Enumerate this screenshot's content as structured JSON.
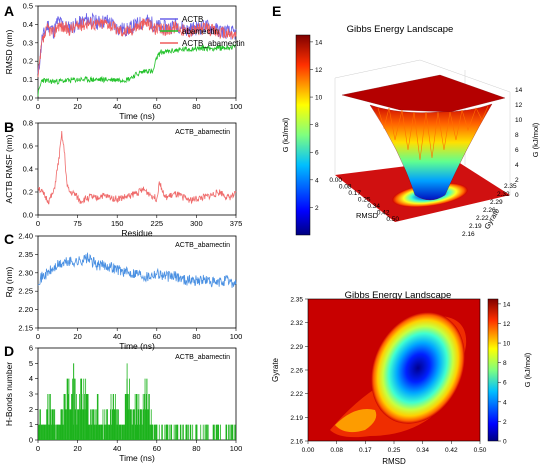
{
  "panels": {
    "A": {
      "letter": "A",
      "ylabel": "RMSD (nm)",
      "xlabel": "Time (ns)",
      "legend": [
        "ACTB",
        "abamectin",
        "ACTB_abamectin"
      ],
      "xticks": [
        "0",
        "20",
        "40",
        "60",
        "80",
        "100"
      ],
      "yticks": [
        "0.0",
        "0.1",
        "0.2",
        "0.3",
        "0.4",
        "0.5"
      ]
    },
    "B": {
      "letter": "B",
      "ylabel": "ACTB RMSF (nm)",
      "xlabel": "Residue",
      "tag": "ACTB_abamectin",
      "xticks": [
        "0",
        "75",
        "150",
        "225",
        "300",
        "375"
      ],
      "yticks": [
        "0.0",
        "0.2",
        "0.4",
        "0.6",
        "0.8"
      ]
    },
    "C": {
      "letter": "C",
      "ylabel": "Rg (nm)",
      "xlabel": "Time (ns)",
      "tag": "ACTB_abamectin",
      "xticks": [
        "0",
        "20",
        "40",
        "60",
        "80",
        "100"
      ],
      "yticks": [
        "2.15",
        "2.20",
        "2.25",
        "2.30",
        "2.35",
        "2.40"
      ]
    },
    "D": {
      "letter": "D",
      "ylabel": "H-Bonds number",
      "xlabel": "Time (ns)",
      "tag": "ACTB_abamectin",
      "xticks": [
        "0",
        "20",
        "40",
        "60",
        "80",
        "100"
      ],
      "yticks": [
        "0",
        "1",
        "2",
        "3",
        "4",
        "5",
        "6"
      ]
    },
    "E": {
      "letter": "E",
      "title3d": "Gibbs Energy Landscape",
      "title2d": "Gibbs Energy Landscape",
      "zlabel": "G (kJ/mol)",
      "cbar_label": "G (kJ/mol)",
      "cbar_label2": "G (kJ/mol)",
      "rmsd_label": "RMSD",
      "gyrate_label": "Gyrate",
      "cbar_ticks": [
        "2",
        "4",
        "6",
        "8",
        "10",
        "12",
        "14"
      ],
      "cbar2_ticks": [
        "0",
        "2",
        "4",
        "6",
        "8",
        "10",
        "12",
        "14"
      ],
      "z_ticks": [
        "0",
        "2",
        "4",
        "6",
        "8",
        "10",
        "12",
        "14"
      ],
      "rmsd3d_ticks": [
        "0.00",
        "0.08",
        "0.17",
        "0.25",
        "0.34",
        "0.42",
        "0.50"
      ],
      "gyr3d_ticks": [
        "2.16",
        "2.19",
        "2.22",
        "2.26",
        "2.29",
        "2.32",
        "2.35"
      ],
      "rmsd2d_ticks": [
        "0.00",
        "0.08",
        "0.17",
        "0.25",
        "0.34",
        "0.42",
        "0.50"
      ],
      "gyr2d_ticks": [
        "2.16",
        "2.19",
        "2.22",
        "2.26",
        "2.29",
        "2.32",
        "2.35"
      ]
    }
  },
  "colors": {
    "ACTB": "#6b63e8",
    "abamectin": "#22c22a",
    "ACTB_abamectin": "#ef5b5b",
    "rmsf": "#ef6b6b",
    "rg": "#4a90e2",
    "hbond": "#1db31d"
  },
  "chart_data": [
    {
      "type": "line",
      "panel": "A",
      "xlim": [
        0,
        100
      ],
      "ylim": [
        0,
        0.5
      ],
      "series": [
        {
          "name": "ACTB",
          "x": [
            0,
            2,
            5,
            8,
            10,
            15,
            20,
            25,
            30,
            35,
            40,
            45,
            50,
            55,
            60,
            65,
            70,
            75,
            80,
            85,
            90,
            95,
            100
          ],
          "values": [
            0.12,
            0.32,
            0.4,
            0.36,
            0.42,
            0.38,
            0.4,
            0.43,
            0.41,
            0.42,
            0.38,
            0.37,
            0.4,
            0.42,
            0.39,
            0.38,
            0.4,
            0.37,
            0.38,
            0.39,
            0.37,
            0.36,
            0.35
          ]
        },
        {
          "name": "abamectin",
          "x": [
            0,
            2,
            5,
            10,
            20,
            30,
            40,
            45,
            50,
            55,
            58,
            60,
            62,
            65,
            70,
            80,
            90,
            100
          ],
          "values": [
            0.02,
            0.1,
            0.09,
            0.09,
            0.1,
            0.1,
            0.1,
            0.1,
            0.13,
            0.15,
            0.14,
            0.22,
            0.25,
            0.25,
            0.26,
            0.27,
            0.27,
            0.28
          ]
        },
        {
          "name": "ACTB_abamectin",
          "x": [
            0,
            2,
            5,
            8,
            10,
            15,
            20,
            25,
            30,
            35,
            40,
            45,
            50,
            55,
            60,
            65,
            70,
            75,
            80,
            85,
            90,
            95,
            100
          ],
          "values": [
            0.1,
            0.3,
            0.38,
            0.35,
            0.4,
            0.37,
            0.39,
            0.41,
            0.4,
            0.41,
            0.37,
            0.36,
            0.39,
            0.41,
            0.37,
            0.37,
            0.39,
            0.36,
            0.37,
            0.38,
            0.36,
            0.35,
            0.34
          ]
        }
      ]
    },
    {
      "type": "line",
      "panel": "B",
      "xlim": [
        0,
        375
      ],
      "ylim": [
        0,
        0.8
      ],
      "series": [
        {
          "x": [
            0,
            10,
            20,
            30,
            40,
            45,
            50,
            55,
            60,
            70,
            80,
            100,
            110,
            120,
            150,
            170,
            200,
            225,
            230,
            240,
            260,
            290,
            320,
            345,
            360,
            375
          ],
          "values": [
            0.25,
            0.18,
            0.12,
            0.2,
            0.5,
            0.7,
            0.55,
            0.25,
            0.2,
            0.18,
            0.12,
            0.16,
            0.14,
            0.17,
            0.14,
            0.16,
            0.22,
            0.14,
            0.3,
            0.15,
            0.18,
            0.13,
            0.16,
            0.2,
            0.15,
            0.18
          ]
        }
      ]
    },
    {
      "type": "line",
      "panel": "C",
      "xlim": [
        0,
        100
      ],
      "ylim": [
        2.15,
        2.4
      ],
      "series": [
        {
          "x": [
            0,
            5,
            10,
            15,
            20,
            25,
            30,
            35,
            40,
            45,
            50,
            55,
            60,
            65,
            70,
            75,
            80,
            85,
            90,
            95,
            100
          ],
          "values": [
            2.28,
            2.3,
            2.32,
            2.33,
            2.33,
            2.34,
            2.32,
            2.32,
            2.31,
            2.3,
            2.3,
            2.29,
            2.3,
            2.29,
            2.29,
            2.28,
            2.28,
            2.28,
            2.27,
            2.28,
            2.27
          ]
        }
      ]
    },
    {
      "type": "bar",
      "panel": "D",
      "xlim": [
        0,
        100
      ],
      "ylim": [
        0,
        6
      ],
      "series": [
        {
          "x": [
            1,
            3,
            5,
            8,
            10,
            12,
            15,
            17,
            18,
            20,
            22,
            25,
            28,
            30,
            32,
            35,
            38,
            40,
            42,
            45,
            48,
            50,
            52,
            55,
            58,
            60,
            65,
            70,
            75,
            80,
            85,
            90,
            95,
            98
          ],
          "values": [
            2,
            1,
            3,
            2,
            1,
            2,
            4,
            3,
            5,
            2,
            4,
            3,
            2,
            3,
            1,
            2,
            3,
            2,
            1,
            4,
            2,
            3,
            2,
            4,
            1,
            1,
            1,
            1,
            1,
            1,
            1,
            1,
            1,
            1
          ]
        }
      ]
    },
    {
      "type": "heatmap",
      "panel": "E",
      "x_label": "RMSD",
      "y_label": "Gyrate",
      "xlim": [
        0,
        0.5
      ],
      "ylim": [
        2.16,
        2.36
      ],
      "zlim": [
        0,
        14
      ],
      "basin_center": [
        0.34,
        2.27
      ],
      "basin_min": 0
    }
  ]
}
